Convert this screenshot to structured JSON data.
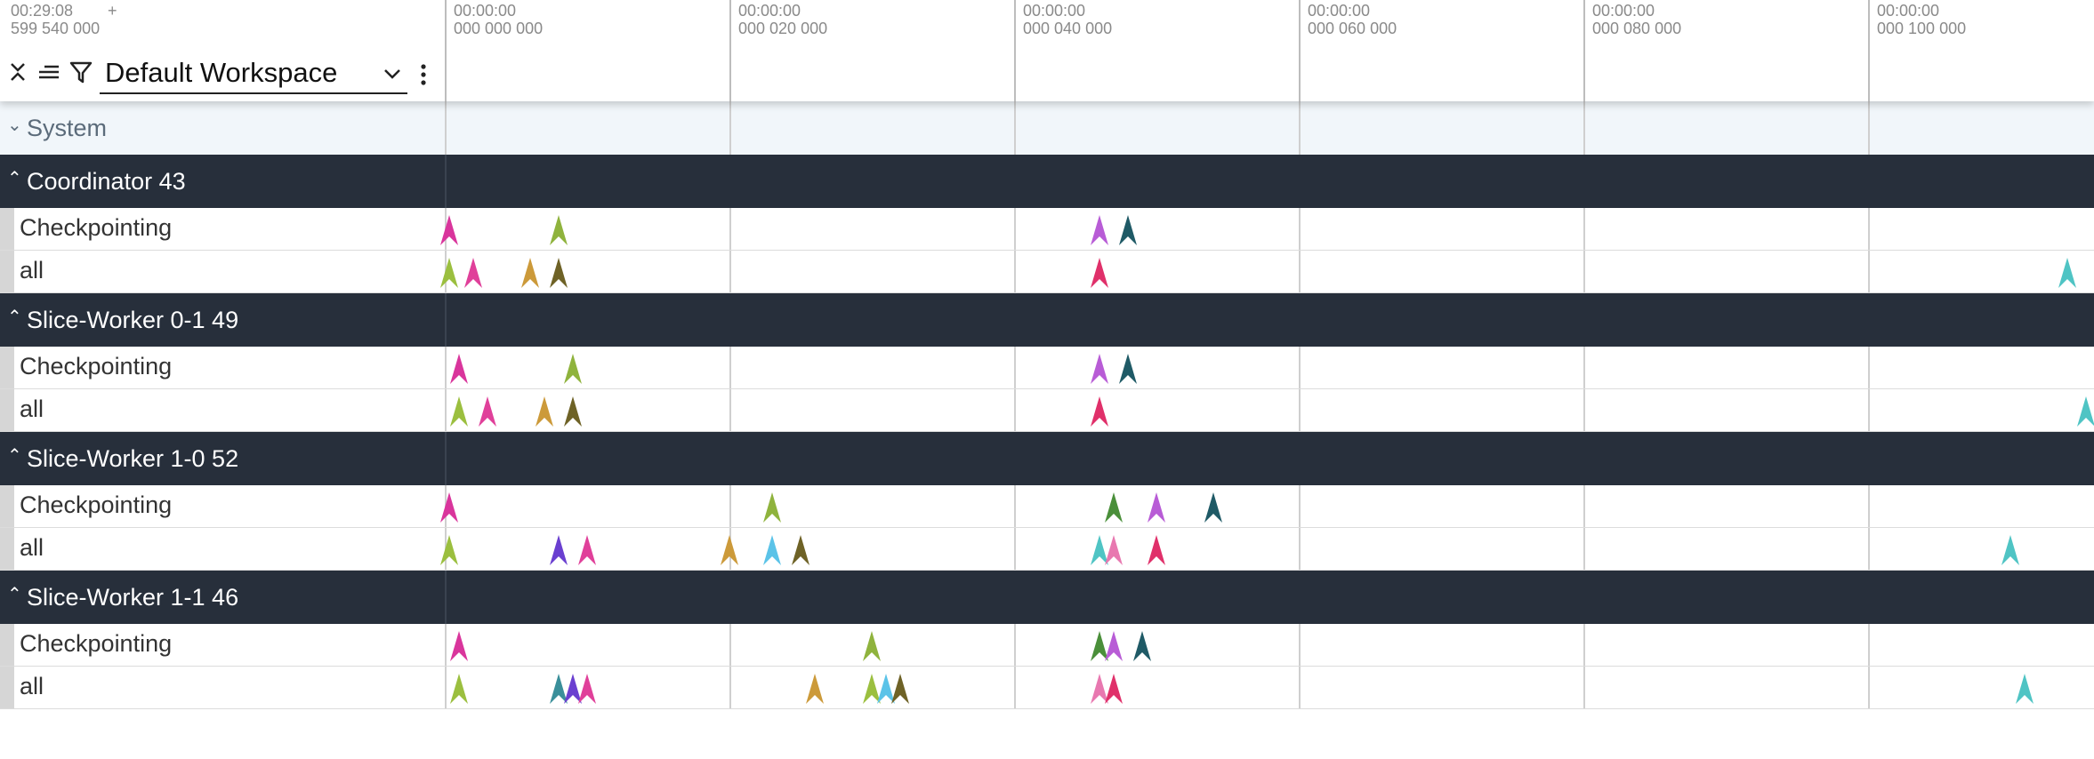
{
  "header": {
    "offset_time": "00:29:08",
    "offset_value": "599 540 000",
    "plus_label": "+",
    "workspace": "Default Workspace",
    "icons": [
      "collapse-icon",
      "sort-lines-icon",
      "filter-icon",
      "chevron-down-icon",
      "more-vertical-icon"
    ],
    "ticks": [
      {
        "time": "00:00:00",
        "value": "000 000 000"
      },
      {
        "time": "00:00:00",
        "value": "000 020 000"
      },
      {
        "time": "00:00:00",
        "value": "000 040 000"
      },
      {
        "time": "00:00:00",
        "value": "000 060 000"
      },
      {
        "time": "00:00:00",
        "value": "000 080 000"
      },
      {
        "time": "00:00:00",
        "value": "000 100 000"
      }
    ]
  },
  "system_track": {
    "label": "System",
    "collapsed": true
  },
  "groups": [
    {
      "label": "Coordinator 43",
      "rows": [
        {
          "label": "Checkpointing",
          "markers": [
            {
              "t": 0.3,
              "color": "#d9359c"
            },
            {
              "t": 8.0,
              "color": "#8fb33d"
            },
            {
              "t": 46.0,
              "color": "#b85cd6"
            },
            {
              "t": 48.0,
              "color": "#1f5a66"
            }
          ]
        },
        {
          "label": "all",
          "markers": [
            {
              "t": 0.3,
              "color": "#9bbf3f"
            },
            {
              "t": 2.0,
              "color": "#e0409a"
            },
            {
              "t": 6.0,
              "color": "#cc9a3a"
            },
            {
              "t": 8.0,
              "color": "#6e6226"
            },
            {
              "t": 46.0,
              "color": "#e0306a"
            },
            {
              "t": 114.0,
              "color": "#4fc4c4"
            }
          ]
        }
      ]
    },
    {
      "label": "Slice-Worker 0-1 49",
      "rows": [
        {
          "label": "Checkpointing",
          "markers": [
            {
              "t": 1.0,
              "color": "#d9359c"
            },
            {
              "t": 9.0,
              "color": "#8fb33d"
            },
            {
              "t": 46.0,
              "color": "#b85cd6"
            },
            {
              "t": 48.0,
              "color": "#1f5a66"
            }
          ]
        },
        {
          "label": "all",
          "markers": [
            {
              "t": 1.0,
              "color": "#9bbf3f"
            },
            {
              "t": 3.0,
              "color": "#e0409a"
            },
            {
              "t": 7.0,
              "color": "#cc9a3a"
            },
            {
              "t": 9.0,
              "color": "#6e6226"
            },
            {
              "t": 46.0,
              "color": "#e0306a"
            },
            {
              "t": 115.3,
              "color": "#4fc4c4"
            }
          ]
        }
      ]
    },
    {
      "label": "Slice-Worker 1-0 52",
      "rows": [
        {
          "label": "Checkpointing",
          "markers": [
            {
              "t": 0.3,
              "color": "#d9359c"
            },
            {
              "t": 23.0,
              "color": "#8fb33d"
            },
            {
              "t": 47.0,
              "color": "#4a8f3a"
            },
            {
              "t": 50.0,
              "color": "#b85cd6"
            },
            {
              "t": 54.0,
              "color": "#1f5a66"
            }
          ]
        },
        {
          "label": "all",
          "markers": [
            {
              "t": 0.3,
              "color": "#9bbf3f"
            },
            {
              "t": 8.0,
              "color": "#6a3fd0"
            },
            {
              "t": 10.0,
              "color": "#e0409a"
            },
            {
              "t": 20.0,
              "color": "#cc9a3a"
            },
            {
              "t": 23.0,
              "color": "#5bc3e8"
            },
            {
              "t": 25.0,
              "color": "#6e6226"
            },
            {
              "t": 46.0,
              "color": "#4fc4c4"
            },
            {
              "t": 47.0,
              "color": "#e878b0"
            },
            {
              "t": 50.0,
              "color": "#e0306a"
            },
            {
              "t": 110.0,
              "color": "#4fc4c4"
            }
          ]
        }
      ]
    },
    {
      "label": "Slice-Worker 1-1 46",
      "rows": [
        {
          "label": "Checkpointing",
          "markers": [
            {
              "t": 1.0,
              "color": "#d9359c"
            },
            {
              "t": 30.0,
              "color": "#8fb33d"
            },
            {
              "t": 46.0,
              "color": "#4a8f3a"
            },
            {
              "t": 47.0,
              "color": "#b85cd6"
            },
            {
              "t": 49.0,
              "color": "#1f5a66"
            }
          ]
        },
        {
          "label": "all",
          "markers": [
            {
              "t": 1.0,
              "color": "#9bbf3f"
            },
            {
              "t": 8.0,
              "color": "#3a8f9a"
            },
            {
              "t": 9.0,
              "color": "#6a3fd0"
            },
            {
              "t": 10.0,
              "color": "#e0409a"
            },
            {
              "t": 26.0,
              "color": "#cc9a3a"
            },
            {
              "t": 30.0,
              "color": "#9bbf3f"
            },
            {
              "t": 31.0,
              "color": "#5bc3e8"
            },
            {
              "t": 32.0,
              "color": "#6e6226"
            },
            {
              "t": 46.0,
              "color": "#e878b0"
            },
            {
              "t": 47.0,
              "color": "#e0306a"
            },
            {
              "t": 111.0,
              "color": "#4fc4c4"
            }
          ]
        }
      ]
    }
  ]
}
